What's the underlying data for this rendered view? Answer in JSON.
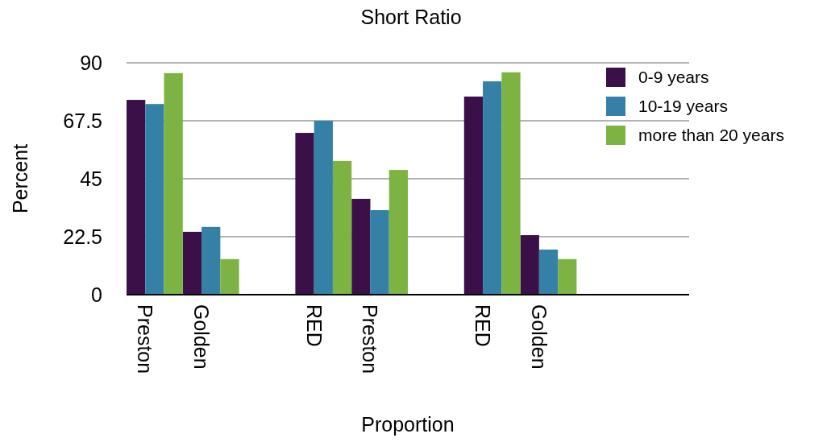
{
  "chart_data": {
    "type": "bar",
    "title": "Short Ratio",
    "xlabel": "Proportion",
    "ylabel": "Percent",
    "categories": [
      "Preston",
      "Golden",
      null,
      "RED",
      "Preston",
      null,
      "RED",
      "Golden",
      null,
      null
    ],
    "series": [
      {
        "name": "0-9 years",
        "color": "#3b0f47",
        "values": [
          75.6,
          24.4,
          null,
          62.8,
          37.2,
          null,
          76.9,
          23.1,
          null,
          null
        ]
      },
      {
        "name": "10-19 years",
        "color": "#3580a6",
        "values": [
          74,
          26.3,
          null,
          67.5,
          32.8,
          null,
          82.8,
          17.5,
          null,
          null
        ]
      },
      {
        "name": "more than 20 years",
        "color": "#7cb342",
        "values": [
          86,
          13.8,
          null,
          51.9,
          48.4,
          null,
          86.3,
          13.8,
          null,
          null
        ]
      }
    ],
    "ylim": [
      0,
      90
    ],
    "yticks": [
      0,
      22.5,
      45,
      67.5,
      90
    ],
    "grid": "y",
    "legend": "top right"
  }
}
